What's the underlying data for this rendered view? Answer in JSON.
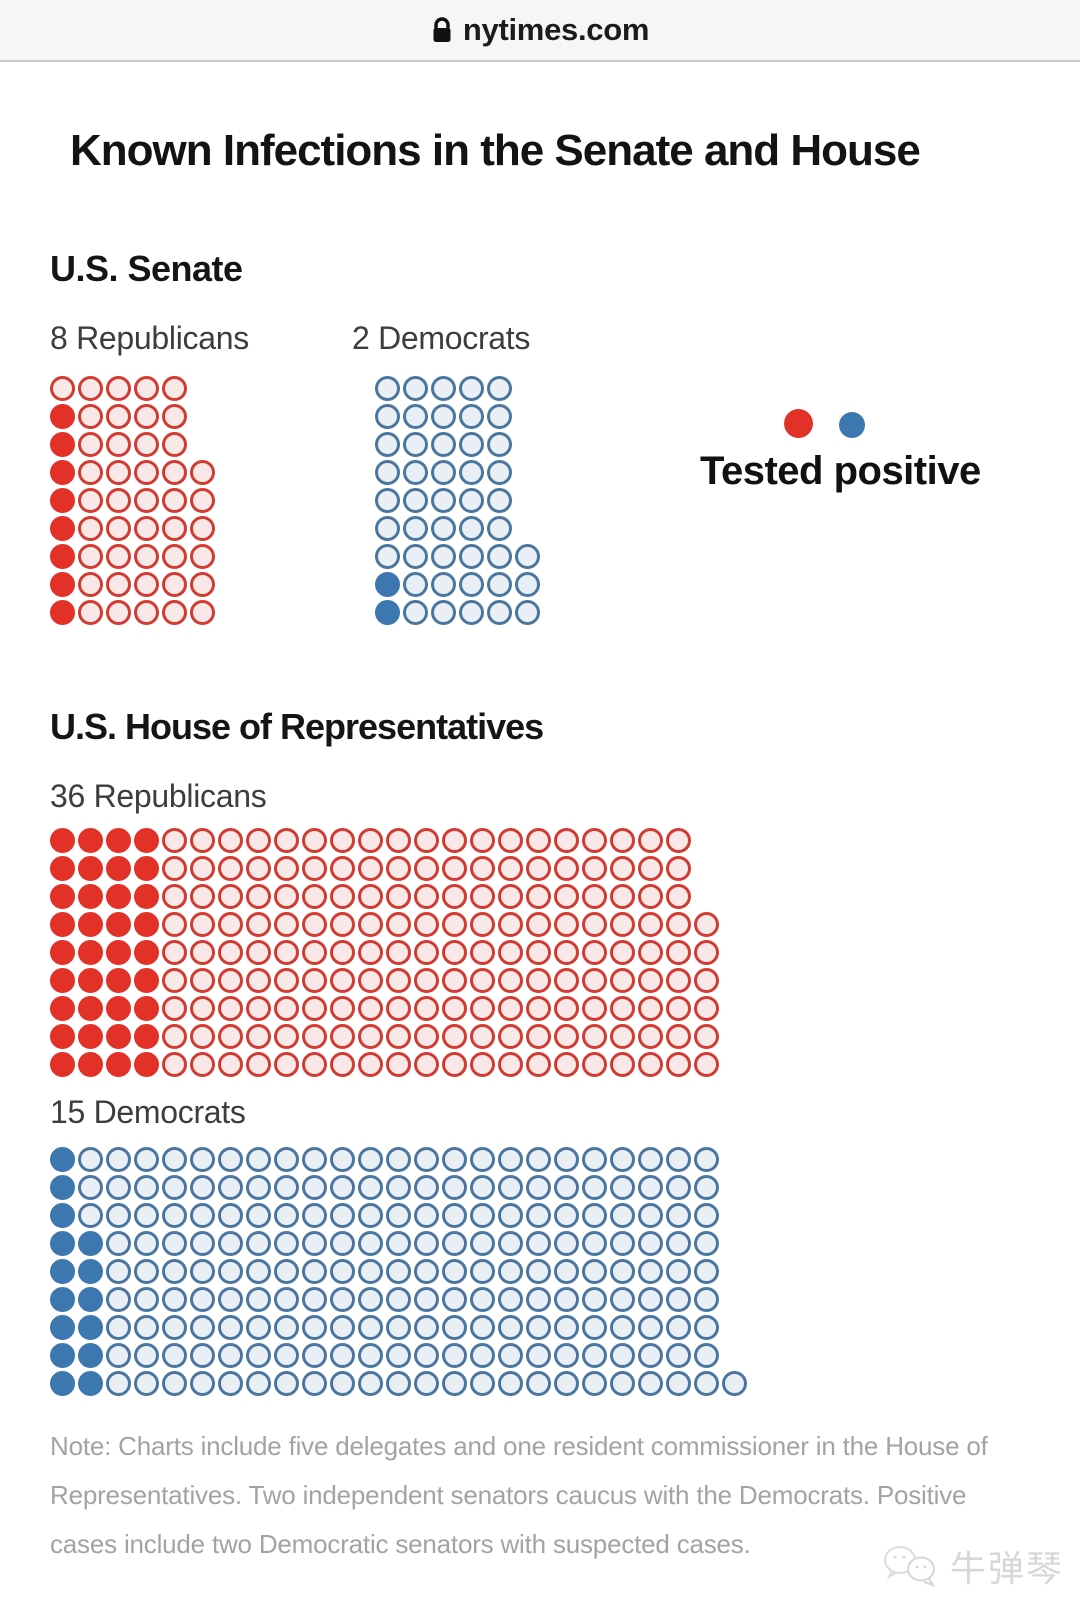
{
  "browser": {
    "url": "nytimes.com",
    "lock_icon": "lock-icon"
  },
  "title": "Known Infections in the Senate and House",
  "sections": {
    "senate": {
      "heading": "U.S. Senate"
    },
    "house": {
      "heading": "U.S. House of Representatives"
    }
  },
  "legend": {
    "label": "Tested positive"
  },
  "note": {
    "lines": [
      "Note: Charts include five delegates and one resident commissioner in the House of",
      "Representatives. Two independent senators caucus with the Democrats. Positive",
      "cases include two Democratic senators with suspected cases."
    ]
  },
  "watermark": {
    "text": "牛弹琴",
    "icon": "wechat-bubbles-icon"
  },
  "colors": {
    "republican_filled": "#e23227",
    "republican_ring": "#d23b32",
    "republican_open_fill": "#f8e9e8",
    "democrat_filled": "#3d77af",
    "democrat_ring": "#4b769f",
    "democrat_open_fill": "#eaeff5"
  },
  "chart_data": {
    "type": "waffle",
    "title": "Known Infections in the Senate and House",
    "legend": "Tested positive",
    "rows_format": "[dots_in_row, filled_from_left]",
    "charts": [
      {
        "chamber": "U.S. Senate",
        "party": "Republicans",
        "label": "8 Republicans",
        "tested_positive": 8,
        "seats_shown": 51,
        "rows": [
          [
            5,
            0
          ],
          [
            5,
            1
          ],
          [
            5,
            1
          ],
          [
            6,
            1
          ],
          [
            6,
            1
          ],
          [
            6,
            1
          ],
          [
            6,
            1
          ],
          [
            6,
            1
          ],
          [
            6,
            1
          ]
        ]
      },
      {
        "chamber": "U.S. Senate",
        "party": "Democrats",
        "label": "2 Democrats",
        "tested_positive": 2,
        "seats_shown": 48,
        "rows": [
          [
            5,
            0
          ],
          [
            5,
            0
          ],
          [
            5,
            0
          ],
          [
            5,
            0
          ],
          [
            5,
            0
          ],
          [
            5,
            0
          ],
          [
            6,
            0
          ],
          [
            6,
            1
          ],
          [
            6,
            1
          ]
        ]
      },
      {
        "chamber": "U.S. House of Representatives",
        "party": "Republicans",
        "label": "36 Republicans",
        "tested_positive": 36,
        "seats_shown": 213,
        "rows": [
          [
            23,
            4
          ],
          [
            23,
            4
          ],
          [
            23,
            4
          ],
          [
            24,
            4
          ],
          [
            24,
            4
          ],
          [
            24,
            4
          ],
          [
            24,
            4
          ],
          [
            24,
            4
          ],
          [
            24,
            4
          ]
        ]
      },
      {
        "chamber": "U.S. House of Representatives",
        "party": "Democrats",
        "label": "15 Democrats",
        "tested_positive": 15,
        "seats_shown": 217,
        "rows": [
          [
            24,
            1
          ],
          [
            24,
            1
          ],
          [
            24,
            1
          ],
          [
            24,
            2
          ],
          [
            24,
            2
          ],
          [
            24,
            2
          ],
          [
            24,
            2
          ],
          [
            24,
            2
          ],
          [
            25,
            2
          ]
        ]
      }
    ]
  }
}
